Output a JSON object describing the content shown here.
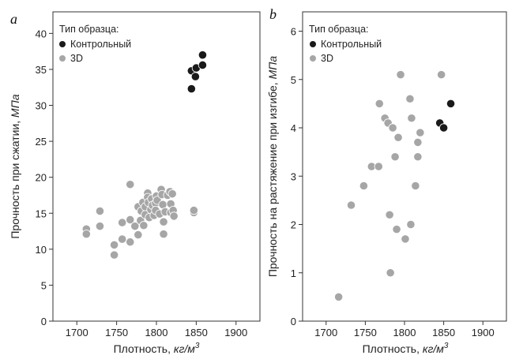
{
  "chart_data": [
    {
      "type": "scatter",
      "panel_label": "a",
      "xlabel": "Плотность, кг/м³",
      "xlabel_text": "Плотность, ",
      "xlabel_unit": "кг/м",
      "xlabel_sup": "3",
      "ylabel": "Прочность при сжатии, МПа",
      "ylabel_text": "Прочность при сжатии, ",
      "ylabel_unit": "МПа",
      "xlim": [
        1670,
        1930
      ],
      "ylim": [
        0,
        43
      ],
      "xticks": [
        1700,
        1750,
        1800,
        1850,
        1900
      ],
      "yticks": [
        0,
        5,
        10,
        15,
        20,
        25,
        30,
        35,
        40
      ],
      "grid": false,
      "legend": {
        "title": "Тип образца:",
        "placement": "top-left",
        "entries": [
          {
            "name": "Контрольный",
            "color": "#1a1a1a"
          },
          {
            "name": "3D",
            "color": "#a6a6a6"
          }
        ]
      },
      "series": [
        {
          "name": "Контрольный",
          "color": "#1a1a1a",
          "points": [
            [
              1844,
              34.8
            ],
            [
              1850,
              35.2
            ],
            [
              1858,
              37.0
            ],
            [
              1849,
              34.0
            ],
            [
              1858,
              35.6
            ],
            [
              1844,
              32.3
            ]
          ]
        },
        {
          "name": "3D",
          "color": "#a6a6a6",
          "points": [
            [
              1712,
              12.8
            ],
            [
              1712,
              12.1
            ],
            [
              1729,
              15.3
            ],
            [
              1729,
              13.2
            ],
            [
              1747,
              10.6
            ],
            [
              1747,
              9.2
            ],
            [
              1757,
              13.7
            ],
            [
              1757,
              11.4
            ],
            [
              1767,
              19.0
            ],
            [
              1767,
              14.1
            ],
            [
              1767,
              11.0
            ],
            [
              1773,
              13.2
            ],
            [
              1777,
              15.9
            ],
            [
              1777,
              12.0
            ],
            [
              1780,
              14.0
            ],
            [
              1781,
              15.3
            ],
            [
              1783,
              16.5
            ],
            [
              1784,
              13.3
            ],
            [
              1786,
              15.9
            ],
            [
              1786,
              14.8
            ],
            [
              1789,
              17.8
            ],
            [
              1789,
              17.2
            ],
            [
              1790,
              16.5
            ],
            [
              1791,
              14.4
            ],
            [
              1793,
              15.5
            ],
            [
              1794,
              17.0
            ],
            [
              1795,
              16.1
            ],
            [
              1797,
              14.7
            ],
            [
              1799,
              16.4
            ],
            [
              1799,
              15.4
            ],
            [
              1800,
              17.4
            ],
            [
              1801,
              16.8
            ],
            [
              1804,
              14.9
            ],
            [
              1806,
              18.3
            ],
            [
              1807,
              17.6
            ],
            [
              1808,
              16.2
            ],
            [
              1809,
              13.8
            ],
            [
              1809,
              12.1
            ],
            [
              1811,
              15.2
            ],
            [
              1814,
              17.5
            ],
            [
              1817,
              18.0
            ],
            [
              1818,
              16.3
            ],
            [
              1818,
              15.1
            ],
            [
              1820,
              17.7
            ],
            [
              1821,
              15.4
            ],
            [
              1822,
              14.6
            ],
            [
              1847,
              15.1
            ],
            [
              1847,
              15.4
            ]
          ]
        }
      ]
    },
    {
      "type": "scatter",
      "panel_label": "b",
      "xlabel": "Плотность, кг/м³",
      "xlabel_text": "Плотность, ",
      "xlabel_unit": "кг/м",
      "xlabel_sup": "3",
      "ylabel": "Прочность на растяжение при изгибе, МПа",
      "ylabel_text": "Прочность на растяжение при изгибе, ",
      "ylabel_unit": "МПа",
      "xlim": [
        1670,
        1930
      ],
      "ylim": [
        0,
        6.4
      ],
      "xticks": [
        1700,
        1750,
        1800,
        1850,
        1900
      ],
      "yticks": [
        0,
        1,
        2,
        3,
        4,
        5,
        6
      ],
      "grid": false,
      "legend": {
        "title": "Тип образца:",
        "placement": "top-left",
        "entries": [
          {
            "name": "Контрольный",
            "color": "#1a1a1a"
          },
          {
            "name": "3D",
            "color": "#a6a6a6"
          }
        ]
      },
      "series": [
        {
          "name": "Контрольный",
          "color": "#1a1a1a",
          "points": [
            [
              1845,
              4.1
            ],
            [
              1850,
              4.0
            ],
            [
              1859,
              4.5
            ]
          ]
        },
        {
          "name": "3D",
          "color": "#a6a6a6",
          "points": [
            [
              1716,
              0.5
            ],
            [
              1732,
              2.4
            ],
            [
              1748,
              2.8
            ],
            [
              1758,
              3.2
            ],
            [
              1767,
              3.2
            ],
            [
              1768,
              4.5
            ],
            [
              1775,
              4.2
            ],
            [
              1779,
              4.1
            ],
            [
              1781,
              2.2
            ],
            [
              1782,
              1.0
            ],
            [
              1785,
              4.0
            ],
            [
              1788,
              3.4
            ],
            [
              1790,
              1.9
            ],
            [
              1792,
              3.8
            ],
            [
              1795,
              5.1
            ],
            [
              1801,
              1.7
            ],
            [
              1807,
              4.6
            ],
            [
              1808,
              2.0
            ],
            [
              1809,
              4.2
            ],
            [
              1814,
              2.8
            ],
            [
              1817,
              3.7
            ],
            [
              1817,
              3.4
            ],
            [
              1820,
              3.9
            ],
            [
              1847,
              5.1
            ]
          ]
        }
      ]
    }
  ]
}
